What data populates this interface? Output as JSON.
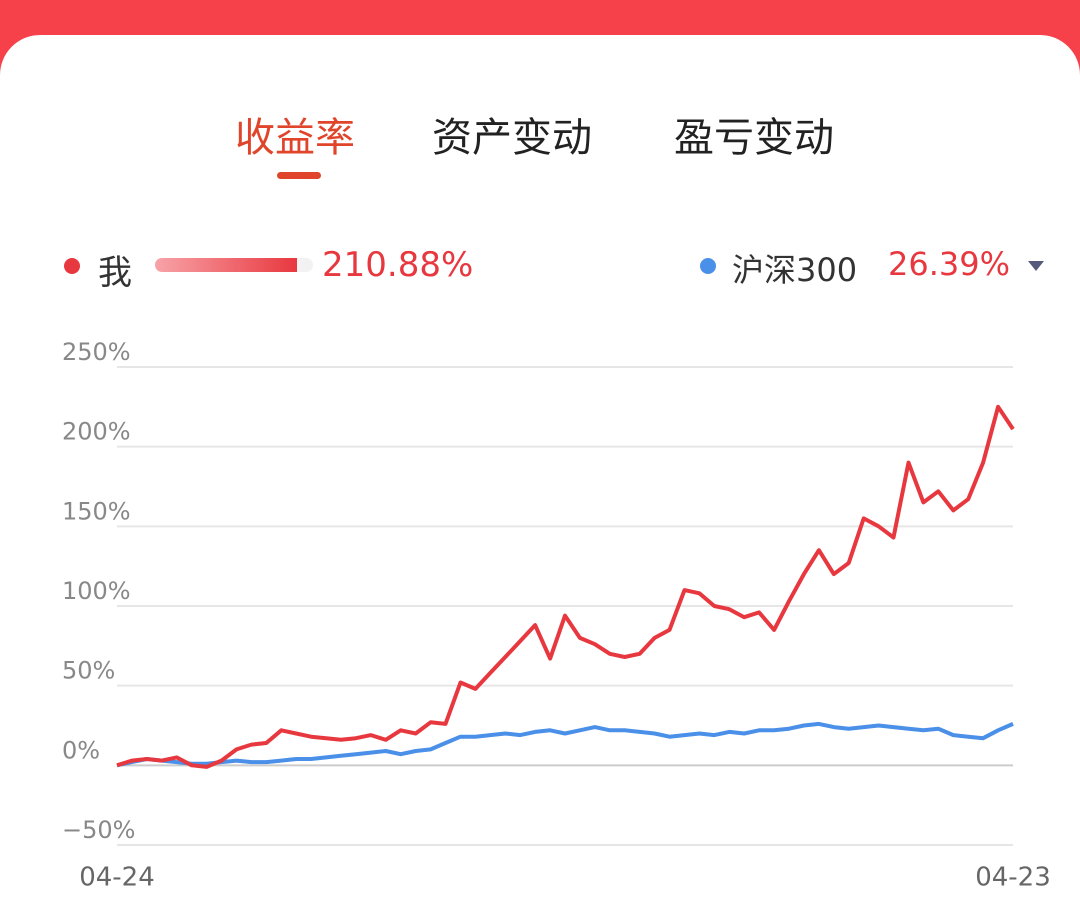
{
  "tabs": [
    "收益率",
    "资产变动",
    "盈亏变动"
  ],
  "chart_data": {
    "type": "line",
    "categories": [
      "04-24",
      null,
      null,
      null,
      null,
      null,
      null,
      null,
      null,
      null,
      null,
      null,
      null,
      null,
      null,
      null,
      null,
      null,
      null,
      null,
      null,
      null,
      null,
      null,
      null,
      null,
      null,
      null,
      null,
      null,
      null,
      null,
      null,
      null,
      null,
      null,
      null,
      null,
      null,
      null,
      null,
      null,
      null,
      null,
      null,
      null,
      null,
      null,
      null,
      null,
      null,
      null,
      null,
      null,
      null,
      null,
      null,
      null,
      null,
      null,
      "04-23"
    ],
    "series": [
      {
        "name": "我",
        "color": "#e8383f",
        "total_label": "210.88%",
        "values": [
          0,
          3,
          4,
          3,
          5,
          0,
          -1,
          3,
          10,
          13,
          14,
          22,
          20,
          18,
          17,
          16,
          17,
          19,
          16,
          22,
          20,
          27,
          26,
          52,
          48,
          58,
          68,
          78,
          88,
          67,
          94,
          80,
          76,
          70,
          68,
          70,
          80,
          85,
          110,
          108,
          100,
          98,
          93,
          96,
          85,
          103,
          120,
          135,
          120,
          127,
          155,
          150,
          143,
          190,
          165,
          172,
          160,
          167,
          190,
          225,
          211
        ]
      },
      {
        "name": "沪深300",
        "color": "#4a8fe8",
        "total_label": "26.39%",
        "values": [
          0,
          2,
          4,
          3,
          2,
          1,
          1,
          2,
          3,
          2,
          2,
          3,
          4,
          4,
          5,
          6,
          7,
          8,
          9,
          7,
          9,
          10,
          14,
          18,
          18,
          19,
          20,
          19,
          21,
          22,
          20,
          22,
          24,
          22,
          22,
          21,
          20,
          18,
          19,
          20,
          19,
          21,
          20,
          22,
          22,
          23,
          25,
          26,
          24,
          23,
          24,
          25,
          24,
          23,
          22,
          23,
          19,
          18,
          17,
          22,
          26
        ]
      }
    ],
    "ylim": [
      -50,
      250
    ],
    "yticks": [
      {
        "value": -50,
        "label": "−50%"
      },
      {
        "value": 0,
        "label": "0%"
      },
      {
        "value": 50,
        "label": "50%"
      },
      {
        "value": 100,
        "label": "100%"
      },
      {
        "value": 150,
        "label": "150%"
      },
      {
        "value": 200,
        "label": "200%"
      },
      {
        "value": 250,
        "label": "250%"
      }
    ],
    "grid": true
  }
}
